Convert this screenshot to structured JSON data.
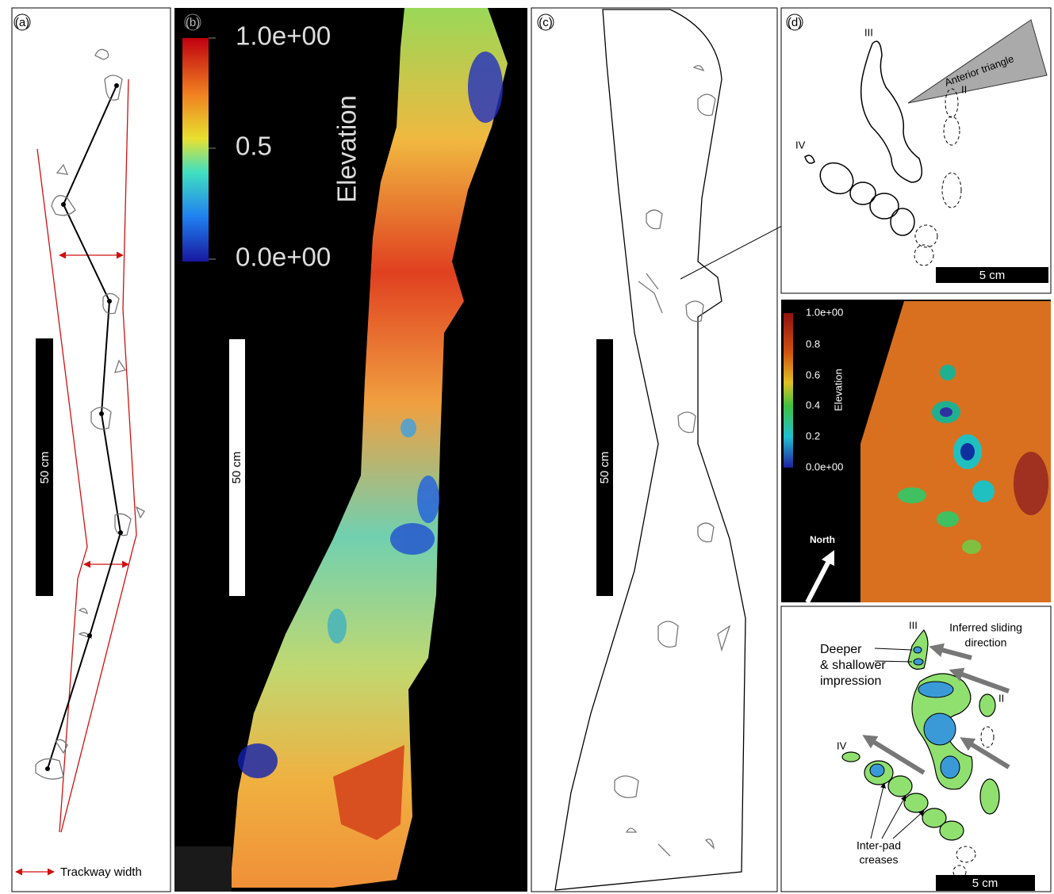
{
  "panel_a": {
    "label": "(a)",
    "scale_bar": "50 cm",
    "legend": "Trackway width"
  },
  "panel_b": {
    "label": "(b)",
    "colorbar": {
      "title": "Elevation",
      "ticks": [
        "1.0e+00",
        "0.5",
        "0.0e+00"
      ]
    },
    "scale_bar": "50 cm"
  },
  "panel_c": {
    "label": "(c)",
    "scale_bar": "50 cm"
  },
  "panel_d": {
    "label": "(d)",
    "outline": {
      "digits": [
        "III",
        "II",
        "IV"
      ],
      "annotation": "Anterior triangle",
      "scale_bar": "5 cm"
    },
    "elevation": {
      "colorbar": {
        "title": "Elevation",
        "ticks": [
          "1.0e+00",
          "0.8",
          "0.6",
          "0.4",
          "0.2",
          "0.0e+00"
        ]
      },
      "north": "North"
    },
    "interpretation": {
      "digits": [
        "III",
        "II",
        "IV"
      ],
      "sliding": [
        "Inferred sliding",
        "direction"
      ],
      "impression": [
        "Deeper",
        "& shallower",
        "impression"
      ],
      "creases": [
        "Inter-pad",
        "creases"
      ],
      "scale_bar": "5 cm"
    }
  }
}
